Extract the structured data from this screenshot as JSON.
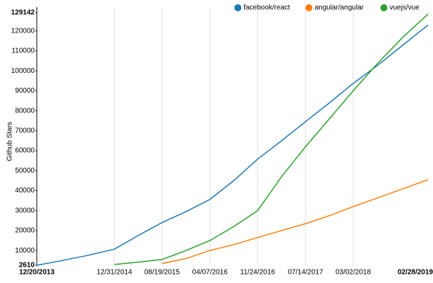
{
  "chart_data": {
    "type": "line",
    "y_label": "Github Stars",
    "x": [
      "12/20/2013",
      "04/20/2014",
      "08/20/2014",
      "12/31/2014",
      "04/25/2015",
      "08/19/2015",
      "12/13/2015",
      "04/07/2016",
      "07/31/2016",
      "11/24/2016",
      "03/20/2017",
      "07/14/2017",
      "11/07/2017",
      "03/02/2018",
      "07/01/2018",
      "10/30/2018",
      "02/28/2019"
    ],
    "series": [
      {
        "name": "facebook/react",
        "color": "#1f77b4",
        "values": [
          2610,
          5000,
          7500,
          10700,
          17500,
          24000,
          29500,
          35600,
          45000,
          55800,
          65000,
          74600,
          84000,
          93700,
          103000,
          113000,
          123000
        ]
      },
      {
        "name": "angular/angular",
        "color": "#ff7f0e",
        "values": [
          null,
          null,
          null,
          null,
          null,
          3500,
          6000,
          10000,
          13000,
          16500,
          20000,
          23500,
          27500,
          32000,
          36500,
          41000,
          45500
        ]
      },
      {
        "name": "vuejs/vue",
        "color": "#2ca02c",
        "values": [
          null,
          null,
          null,
          3000,
          4200,
          5500,
          10000,
          15000,
          22000,
          30000,
          47000,
          62000,
          76000,
          90000,
          104000,
          117000,
          128500
        ]
      }
    ],
    "xlim": [
      "12/20/2013",
      "02/28/2019"
    ],
    "xticks": [
      "12/20/2013",
      "12/31/2014",
      "08/19/2015",
      "04/07/2016",
      "11/24/2016",
      "07/14/2017",
      "03/02/2018",
      "02/28/2019"
    ],
    "ylim": [
      2610,
      129142
    ],
    "yticks": [
      2610,
      10000,
      20000,
      30000,
      40000,
      50000,
      60000,
      70000,
      80000,
      90000,
      100000,
      110000,
      120000,
      129142
    ],
    "grid": true,
    "legend": "top-right"
  }
}
